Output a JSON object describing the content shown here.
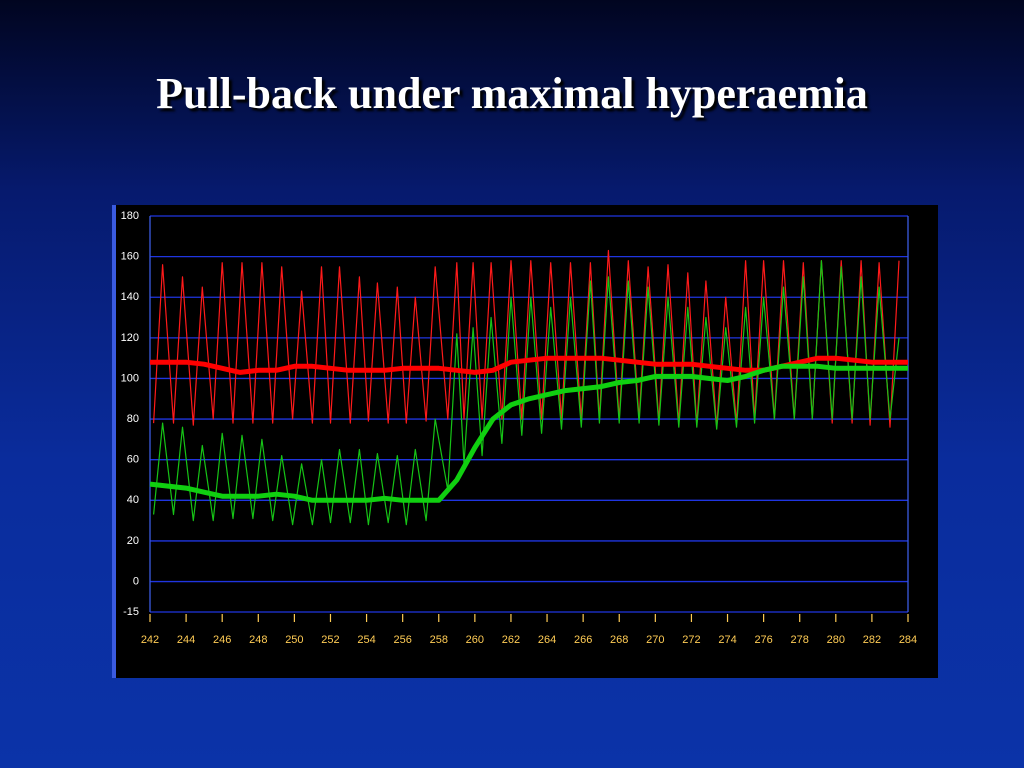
{
  "slide_title": "Pull-back under maximal hyperaemia",
  "chart_data": {
    "type": "line",
    "xlim": [
      242,
      284
    ],
    "xticks": [
      242,
      244,
      246,
      248,
      250,
      252,
      254,
      256,
      258,
      260,
      262,
      264,
      266,
      268,
      270,
      272,
      274,
      276,
      278,
      280,
      282,
      284
    ],
    "ylim": [
      -15,
      180
    ],
    "yticks": [
      -15,
      0,
      20,
      40,
      60,
      80,
      100,
      120,
      140,
      160,
      180
    ],
    "grid": true,
    "x": [
      242.2,
      242.7,
      243.3,
      243.8,
      244.4,
      244.9,
      245.5,
      246.0,
      246.6,
      247.1,
      247.7,
      248.2,
      248.8,
      249.3,
      249.9,
      250.4,
      251.0,
      251.5,
      252.0,
      252.5,
      253.1,
      253.6,
      254.1,
      254.6,
      255.2,
      255.7,
      256.2,
      256.7,
      257.3,
      257.8,
      258.5,
      259.0,
      259.4,
      259.9,
      260.4,
      260.9,
      261.5,
      262.0,
      262.6,
      263.1,
      263.7,
      264.2,
      264.8,
      265.3,
      265.9,
      266.4,
      266.9,
      267.4,
      268.0,
      268.5,
      269.1,
      269.6,
      270.2,
      270.7,
      271.3,
      271.8,
      272.3,
      272.8,
      273.4,
      273.9,
      274.5,
      275.0,
      275.5,
      276.0,
      276.6,
      277.1,
      277.7,
      278.2,
      278.7,
      279.2,
      279.8,
      280.3,
      280.9,
      281.4,
      281.9,
      282.4,
      283.0,
      283.5
    ],
    "series": [
      {
        "color": "#ff1a1a",
        "values": [
          78,
          156,
          78,
          150,
          77,
          145,
          80,
          157,
          78,
          157,
          78,
          157,
          78,
          155,
          80,
          143,
          78,
          155,
          78,
          155,
          78,
          150,
          79,
          147,
          78,
          145,
          78,
          140,
          79,
          155,
          80,
          157,
          80,
          157,
          80,
          157,
          80,
          158,
          80,
          158,
          80,
          157,
          80,
          157,
          80,
          157,
          80,
          163,
          80,
          158,
          80,
          155,
          79,
          156,
          78,
          152,
          77,
          148,
          76,
          140,
          78,
          158,
          80,
          158,
          80,
          158,
          80,
          157,
          80,
          158,
          78,
          158,
          78,
          158,
          77,
          157,
          76,
          158
        ]
      },
      {
        "color": "#16c416",
        "values": [
          33,
          78,
          33,
          76,
          30,
          67,
          30,
          73,
          31,
          72,
          31,
          70,
          30,
          62,
          28,
          58,
          28,
          60,
          29,
          65,
          29,
          65,
          28,
          63,
          29,
          62,
          28,
          65,
          30,
          80,
          45,
          122,
          58,
          125,
          62,
          130,
          68,
          140,
          72,
          140,
          73,
          135,
          75,
          140,
          76,
          148,
          78,
          150,
          78,
          148,
          78,
          145,
          77,
          140,
          76,
          135,
          76,
          130,
          75,
          125,
          76,
          135,
          78,
          140,
          80,
          145,
          80,
          150,
          80,
          158,
          80,
          155,
          80,
          150,
          80,
          145,
          80,
          120
        ]
      }
    ],
    "mean_series": [
      {
        "color": "#ff0000",
        "x": [
          242,
          243,
          244,
          245,
          246,
          247,
          248,
          249,
          250,
          251,
          252,
          253,
          254,
          255,
          256,
          257,
          258,
          259,
          260,
          261,
          262,
          263,
          264,
          265,
          266,
          267,
          268,
          269,
          270,
          271,
          272,
          273,
          274,
          275,
          276,
          277,
          278,
          279,
          280,
          281,
          282,
          283,
          284
        ],
        "values": [
          108,
          108,
          108,
          107,
          105,
          103,
          104,
          104,
          106,
          106,
          105,
          104,
          104,
          104,
          105,
          105,
          105,
          104,
          103,
          104,
          108,
          109,
          110,
          110,
          110,
          110,
          109,
          108,
          107,
          107,
          107,
          106,
          105,
          104,
          104,
          106,
          108,
          110,
          110,
          109,
          108,
          108,
          108
        ]
      },
      {
        "color": "#10d010",
        "x": [
          242,
          243,
          244,
          245,
          246,
          247,
          248,
          249,
          250,
          251,
          252,
          253,
          254,
          255,
          256,
          257,
          258,
          259,
          260,
          261,
          262,
          263,
          264,
          265,
          266,
          267,
          268,
          269,
          270,
          271,
          272,
          273,
          274,
          275,
          276,
          277,
          278,
          279,
          280,
          281,
          282,
          283,
          284
        ],
        "values": [
          48,
          47,
          46,
          44,
          42,
          42,
          42,
          43,
          42,
          40,
          40,
          40,
          40,
          41,
          40,
          40,
          40,
          50,
          66,
          80,
          87,
          90,
          92,
          94,
          95,
          96,
          98,
          99,
          101,
          101,
          101,
          100,
          99,
          101,
          104,
          106,
          106,
          106,
          105,
          105,
          105,
          105,
          105
        ]
      }
    ]
  }
}
